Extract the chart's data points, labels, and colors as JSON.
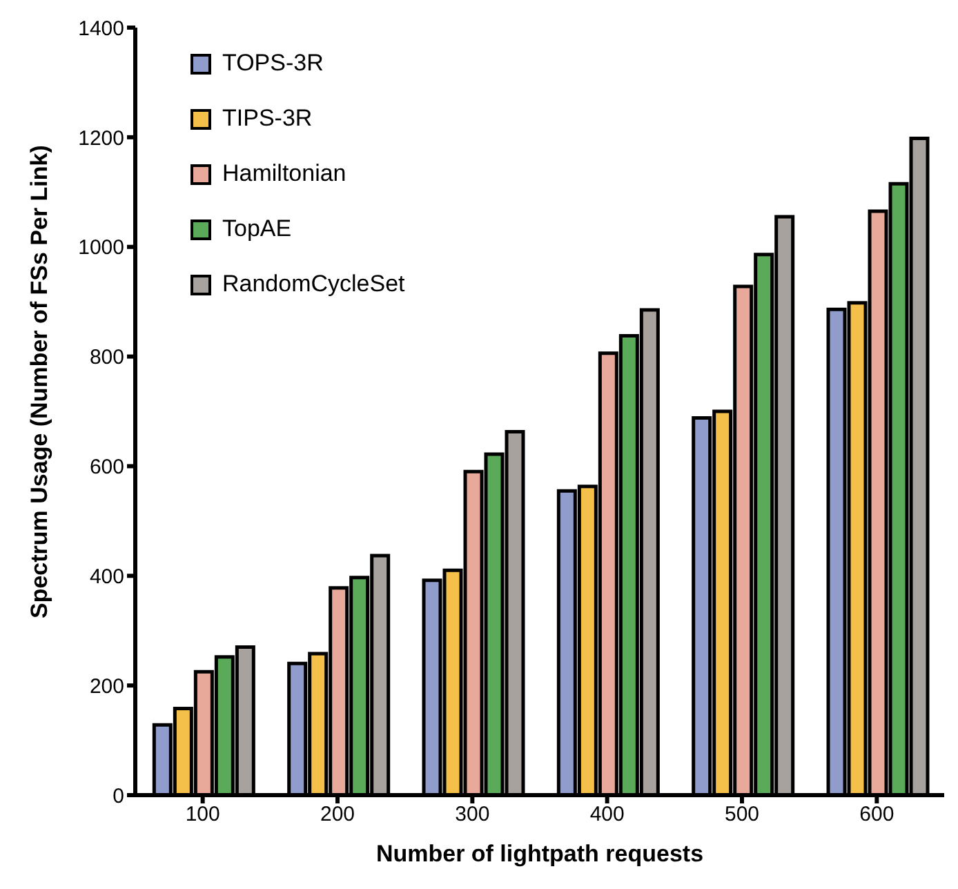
{
  "chart_data": {
    "type": "bar",
    "xlabel": "Number of lightpath requests",
    "ylabel": "Spectrum Usage (Number of FSs Per Link)",
    "categories": [
      "100",
      "200",
      "300",
      "400",
      "500",
      "600"
    ],
    "series": [
      {
        "name": "TOPS-3R",
        "color": "#8f9ccc",
        "values": [
          128,
          240,
          392,
          555,
          688,
          886
        ]
      },
      {
        "name": "TIPS-3R",
        "color": "#f5c04a",
        "values": [
          158,
          258,
          410,
          563,
          700,
          898
        ]
      },
      {
        "name": "Hamiltonian",
        "color": "#e8a89a",
        "values": [
          225,
          378,
          590,
          806,
          928,
          1065
        ]
      },
      {
        "name": "TopAE",
        "color": "#5aaa5a",
        "values": [
          252,
          397,
          622,
          838,
          986,
          1115
        ]
      },
      {
        "name": "RandomCycleSet",
        "color": "#a8a29e",
        "values": [
          270,
          437,
          663,
          885,
          1055,
          1198
        ]
      }
    ],
    "ylim": [
      0,
      1400
    ],
    "yticks": [
      0,
      200,
      400,
      600,
      800,
      1000,
      1200,
      1400
    ],
    "grid": false,
    "legend": "top left"
  }
}
